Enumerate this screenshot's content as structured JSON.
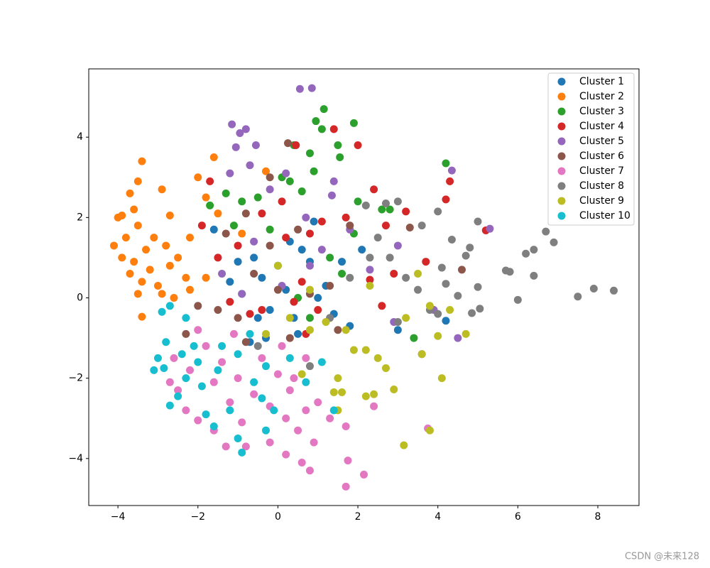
{
  "chart_data": {
    "type": "scatter",
    "xlim": [
      -4.73,
      9.03
    ],
    "ylim": [
      -5.17,
      5.7
    ],
    "xticks": [
      {
        "value": -4,
        "label": "−4"
      },
      {
        "value": -2,
        "label": "−2"
      },
      0,
      2,
      4,
      6,
      8
    ],
    "yticks": [
      {
        "value": -4,
        "label": "−4"
      },
      {
        "value": -2,
        "label": "−2"
      },
      0,
      2,
      4
    ],
    "legend": "upper right",
    "series": [
      {
        "name": "Cluster 1",
        "color": "#1f77b4",
        "x": [
          -1.6,
          -1.2,
          -0.9,
          -0.6,
          -0.4,
          -0.2,
          0,
          0.2,
          0.4,
          0.6,
          0.8,
          1.0,
          1.2,
          1.4,
          1.6,
          1.8,
          0.3,
          -0.7,
          -0.3,
          0.5,
          2.1,
          3.0,
          4.2,
          -1.0,
          0.9,
          -0.5
        ],
        "values": [
          1.7,
          0.4,
          0.1,
          1.0,
          0.5,
          -0.3,
          0.8,
          0.2,
          -0.5,
          1.2,
          0.9,
          0.0,
          0.3,
          -0.4,
          0.9,
          -0.7,
          1.4,
          -1.1,
          -1.0,
          -0.9,
          1.2,
          -0.8,
          -0.57,
          0.9,
          1.9,
          -0.5
        ]
      },
      {
        "name": "Cluster 2",
        "color": "#ff7f0e",
        "x": [
          -4.1,
          -3.9,
          -3.8,
          -3.7,
          -3.6,
          -3.5,
          -3.4,
          -3.5,
          -3.3,
          -3.6,
          -3.7,
          -3.4,
          -3.2,
          -3.0,
          -3.1,
          -2.9,
          -2.8,
          -2.7,
          -2.6,
          -2.5,
          -2.3,
          -2.2,
          -2.0,
          -1.8,
          -1.6,
          -1.5,
          -1.8,
          -2.2,
          -3.4,
          -3.5,
          -0.9,
          -0.3,
          -2.7,
          -3.9,
          -4.0,
          -2.9
        ],
        "values": [
          1.3,
          2.05,
          1.5,
          2.6,
          2.2,
          2.9,
          3.4,
          1.8,
          1.2,
          0.9,
          0.6,
          0.4,
          0.7,
          0.3,
          1.5,
          2.7,
          1.3,
          0.8,
          0.0,
          1.0,
          0.5,
          1.5,
          3.0,
          2.5,
          3.5,
          2.1,
          0.5,
          0.2,
          -0.47,
          0.1,
          1.6,
          3.15,
          2.05,
          1.0,
          2.0,
          0.1
        ]
      },
      {
        "name": "Cluster 3",
        "color": "#2ca02c",
        "x": [
          1.15,
          0.95,
          1.1,
          1.5,
          1.55,
          1.9,
          0.8,
          0.9,
          0.4,
          0.1,
          -0.5,
          -0.9,
          -1.3,
          -1.7,
          -1.1,
          0.6,
          2.0,
          2.6,
          2.8,
          4.2,
          1.3,
          1.6,
          0.5,
          0.8,
          3.4,
          1.9,
          -0.2,
          0.3
        ],
        "values": [
          4.7,
          4.4,
          4.2,
          3.8,
          3.5,
          4.35,
          3.6,
          3.15,
          3.8,
          3.0,
          2.5,
          2.4,
          2.6,
          2.3,
          1.8,
          2.65,
          2.4,
          2.2,
          2.2,
          3.35,
          1.0,
          0.6,
          0.0,
          -0.5,
          -1.0,
          1.6,
          1.7,
          2.9
        ]
      },
      {
        "name": "Cluster 4",
        "color": "#d62728",
        "x": [
          1.4,
          0.45,
          2.0,
          2.4,
          4.3,
          4.2,
          5.2,
          3.2,
          2.7,
          2.9,
          3.7,
          0.8,
          0.2,
          -0.4,
          -1.0,
          -1.5,
          -1.9,
          -1.7,
          0.1,
          1.1,
          0.6,
          1.0,
          2.3,
          -0.7,
          0.4,
          -1.2,
          0.7,
          1.7,
          2.6,
          -0.4
        ],
        "values": [
          4.2,
          3.8,
          3.8,
          2.7,
          2.9,
          2.45,
          1.68,
          2.15,
          1.8,
          0.6,
          0.9,
          1.6,
          1.5,
          2.1,
          1.3,
          1.0,
          1.8,
          2.9,
          2.4,
          1.9,
          0.4,
          -0.3,
          0.45,
          -0.4,
          -0.1,
          -0.1,
          -0.9,
          2.0,
          -0.2,
          -0.3
        ]
      },
      {
        "name": "Cluster 5",
        "color": "#9467bd",
        "x": [
          0.55,
          0.85,
          -1.15,
          -0.95,
          -0.8,
          -1.05,
          -0.55,
          -0.7,
          -1.2,
          1.35,
          1.4,
          4.35,
          5.3,
          0.2,
          -0.2,
          0.7,
          1.1,
          -0.6,
          -1.4,
          0.1,
          0.8,
          1.8,
          2.3,
          3.0,
          4.5,
          3.9,
          -0.9,
          2.9
        ],
        "values": [
          5.2,
          5.22,
          4.32,
          4.1,
          4.2,
          3.75,
          3.8,
          3.3,
          3.1,
          2.55,
          2.9,
          3.17,
          1.72,
          3.1,
          2.7,
          2.0,
          1.2,
          1.4,
          0.6,
          0.3,
          0.8,
          1.7,
          0.7,
          1.3,
          -1.0,
          -0.3,
          0.1,
          -0.6
        ]
      },
      {
        "name": "Cluster 6",
        "color": "#8c564b",
        "x": [
          0.25,
          -0.2,
          -1.3,
          -0.8,
          -0.2,
          0.5,
          1.3,
          -1.0,
          -1.5,
          -2.0,
          -2.3,
          1.5,
          0.8,
          -0.6,
          3.3,
          4.6,
          3.6,
          0.0,
          1.8,
          0.3,
          -0.8
        ],
        "values": [
          3.85,
          3.0,
          1.6,
          2.1,
          1.3,
          1.7,
          0.3,
          -0.5,
          -0.3,
          -0.2,
          -0.9,
          -0.8,
          0.1,
          0.6,
          1.75,
          0.7,
          -1.4,
          0.2,
          1.8,
          -1.0,
          -1.1
        ]
      },
      {
        "name": "Cluster 7",
        "color": "#e377c2",
        "x": [
          1.7,
          1.75,
          2.15,
          0.8,
          0.6,
          0.2,
          -0.2,
          -0.8,
          -1.3,
          -1.6,
          -2.0,
          -2.3,
          -2.5,
          -2.2,
          -2.6,
          -1.8,
          -1.4,
          -1.0,
          -0.6,
          -0.2,
          0.2,
          0.5,
          0.7,
          1.0,
          1.3,
          1.7,
          2.4,
          0.3,
          0.0,
          -0.4,
          0.1,
          0.7,
          -1.2,
          -1.6,
          -0.9,
          3.75,
          -2.7,
          -2.0,
          -1.1,
          0.4,
          0.9
        ],
        "values": [
          -4.7,
          -4.05,
          -4.4,
          -4.3,
          -4.1,
          -3.9,
          -3.6,
          -3.7,
          -3.7,
          -3.3,
          -3.05,
          -2.8,
          -2.3,
          -1.8,
          -1.5,
          -1.2,
          -1.6,
          -2.0,
          -2.4,
          -2.7,
          -3.0,
          -3.3,
          -2.8,
          -2.6,
          -3.0,
          -3.2,
          -2.7,
          -2.3,
          -1.9,
          -1.5,
          -1.2,
          -1.5,
          -2.6,
          -2.1,
          -3.1,
          -3.25,
          -2.1,
          -0.8,
          -0.9,
          -2.0,
          -3.6
        ]
      },
      {
        "name": "Cluster 8",
        "color": "#7f7f7f",
        "x": [
          2.2,
          2.7,
          3.0,
          4.0,
          4.35,
          3.6,
          4.7,
          4.8,
          5.0,
          6.2,
          6.4,
          6.7,
          6.9,
          5.7,
          5.8,
          6.4,
          6.0,
          5.0,
          4.5,
          4.2,
          4.85,
          5.05,
          7.5,
          7.9,
          8.4,
          3.2,
          2.8,
          2.5,
          2.3,
          3.5,
          4.0,
          3.0,
          1.8,
          0.8,
          1.3,
          3.8,
          -0.5,
          4.1
        ],
        "values": [
          2.3,
          2.35,
          2.4,
          2.15,
          1.45,
          1.8,
          1.05,
          1.25,
          1.9,
          1.1,
          1.2,
          1.65,
          1.38,
          0.68,
          0.65,
          0.55,
          -0.05,
          0.27,
          0.05,
          0.35,
          -0.38,
          -0.27,
          0.03,
          0.23,
          0.18,
          0.5,
          1.0,
          1.5,
          1.0,
          0.2,
          -0.4,
          -0.6,
          0.5,
          -1.7,
          -0.5,
          -0.3,
          -1.2,
          0.75
        ]
      },
      {
        "name": "Cluster 9",
        "color": "#bcbd22",
        "x": [
          3.15,
          3.8,
          2.9,
          2.4,
          2.2,
          1.6,
          1.4,
          1.5,
          4.1,
          2.7,
          3.6,
          2.2,
          1.9,
          2.5,
          4.3,
          4.7,
          4.0,
          3.2,
          3.5,
          3.8,
          1.7,
          1.2,
          0.8,
          0.3,
          -0.3,
          0.0,
          0.8,
          1.5,
          0.6,
          2.3
        ],
        "values": [
          -3.67,
          -3.3,
          -2.28,
          -2.4,
          -2.45,
          -2.35,
          -2.35,
          -2.0,
          -2.0,
          -1.75,
          -1.4,
          -1.3,
          -1.3,
          -1.5,
          -0.3,
          -0.9,
          -0.95,
          -0.5,
          0.6,
          -0.2,
          -0.8,
          -0.6,
          -0.8,
          -0.5,
          -0.9,
          0.8,
          0.2,
          -2.8,
          -1.9,
          0.3
        ]
      },
      {
        "name": "Cluster 10",
        "color": "#17becf",
        "x": [
          -3.1,
          -3.0,
          -2.85,
          -2.7,
          -2.8,
          -2.7,
          -2.5,
          -2.4,
          -2.3,
          -2.0,
          -1.9,
          -1.8,
          -1.6,
          -1.4,
          -1.2,
          -1.0,
          -0.9,
          -0.6,
          -0.4,
          -0.3,
          -0.1,
          0.3,
          0.7,
          1.1,
          1.4,
          -0.7,
          -2.9,
          -2.3,
          -1.5,
          -0.3,
          -1.0,
          -2.1
        ],
        "values": [
          -1.8,
          -1.5,
          -1.75,
          -2.68,
          -1.1,
          -0.2,
          -2.45,
          -1.4,
          -2.0,
          -1.6,
          -2.2,
          -2.9,
          -3.2,
          -1.2,
          -2.8,
          -1.4,
          -3.85,
          -2.1,
          -2.5,
          -3.3,
          -2.8,
          -1.5,
          -2.1,
          -1.6,
          -2.8,
          -0.9,
          -0.35,
          -0.5,
          -1.8,
          -1.7,
          -3.5,
          -1.2
        ]
      }
    ]
  },
  "watermark": "CSDN @未来128"
}
